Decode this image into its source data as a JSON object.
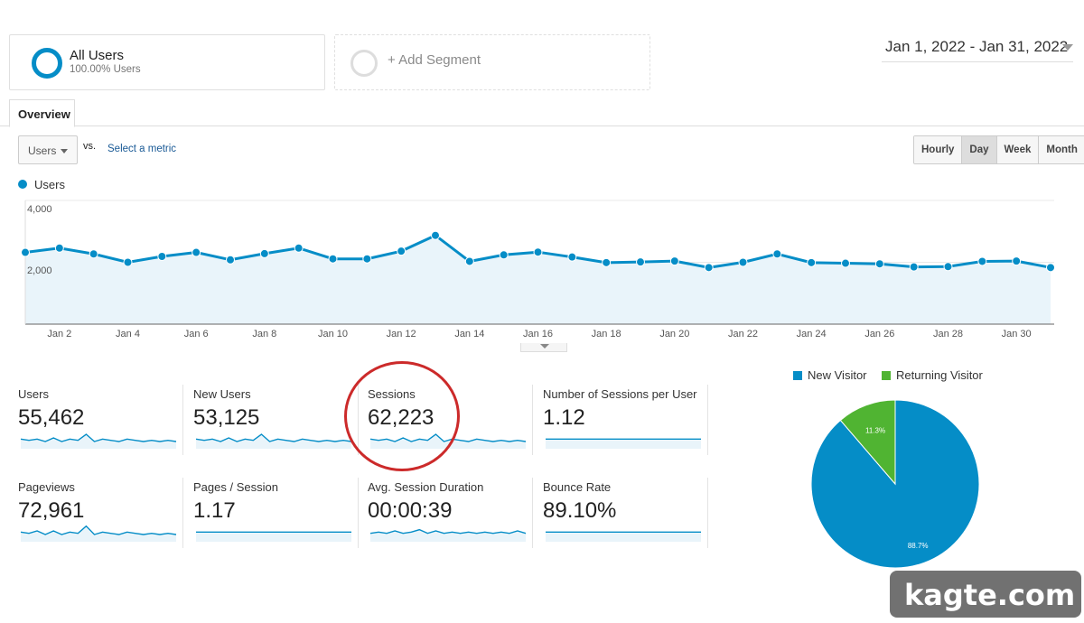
{
  "segments": [
    {
      "title": "All Users",
      "subtitle": "100.00% Users"
    },
    {
      "title": "+ Add Segment"
    }
  ],
  "date_range": "Jan 1, 2022 - Jan 31, 2022",
  "tab": "Overview",
  "metric_select": {
    "selected": "Users",
    "vs": "vs.",
    "select_metric": "Select a metric"
  },
  "granularity": {
    "options": [
      "Hourly",
      "Day",
      "Week",
      "Month"
    ],
    "selected": "Day"
  },
  "legend": "Users",
  "colors": {
    "users": "#058dc7",
    "returning": "#50b432"
  },
  "chart_data": {
    "type": "line",
    "series": [
      {
        "name": "Users",
        "values": [
          2320,
          2460,
          2270,
          2000,
          2190,
          2320,
          2080,
          2280,
          2460,
          2110,
          2110,
          2360,
          2870,
          2030,
          2240,
          2330,
          2170,
          1990,
          2010,
          2040,
          1830,
          2000,
          2270,
          1990,
          1970,
          1950,
          1850,
          1860,
          2030,
          2040,
          1830
        ]
      }
    ],
    "x": [
      "Jan 1",
      "Jan 2",
      "Jan 3",
      "Jan 4",
      "Jan 5",
      "Jan 6",
      "Jan 7",
      "Jan 8",
      "Jan 9",
      "Jan 10",
      "Jan 11",
      "Jan 12",
      "Jan 13",
      "Jan 14",
      "Jan 15",
      "Jan 16",
      "Jan 17",
      "Jan 18",
      "Jan 19",
      "Jan 20",
      "Jan 21",
      "Jan 22",
      "Jan 23",
      "Jan 24",
      "Jan 25",
      "Jan 26",
      "Jan 27",
      "Jan 28",
      "Jan 29",
      "Jan 30",
      "Jan 31"
    ],
    "xticks": [
      "Jan 2",
      "Jan 4",
      "Jan 6",
      "Jan 8",
      "Jan 10",
      "Jan 12",
      "Jan 14",
      "Jan 16",
      "Jan 18",
      "Jan 20",
      "Jan 22",
      "Jan 24",
      "Jan 26",
      "Jan 28",
      "Jan 30"
    ],
    "yticks": [
      "4,000",
      "2,000"
    ],
    "ylim": [
      0,
      4000
    ],
    "grid": true
  },
  "metrics": [
    {
      "label": "Users",
      "value": "55,462",
      "spark": [
        5,
        4,
        5,
        3,
        6,
        3,
        5,
        4,
        9,
        3,
        5,
        4,
        3,
        5,
        4,
        3,
        4,
        3,
        4,
        3
      ]
    },
    {
      "label": "New Users",
      "value": "53,125",
      "spark": [
        5,
        4,
        5,
        3,
        6,
        3,
        5,
        4,
        9,
        3,
        5,
        4,
        3,
        5,
        4,
        3,
        4,
        3,
        4,
        3
      ]
    },
    {
      "label": "Sessions",
      "value": "62,223",
      "spark": [
        5,
        4,
        5,
        3,
        6,
        3,
        5,
        4,
        9,
        3,
        5,
        4,
        3,
        5,
        4,
        3,
        4,
        3,
        4,
        3
      ]
    },
    {
      "label": "Number of Sessions per User",
      "value": "1.12",
      "spark": [
        5,
        5,
        5,
        5,
        5,
        5,
        5,
        5,
        5,
        5,
        5,
        5,
        5,
        5,
        5,
        5,
        5,
        5,
        5,
        5
      ]
    },
    {
      "label": "Pageviews",
      "value": "72,961",
      "spark": [
        5,
        4,
        6,
        3,
        6,
        3,
        5,
        4,
        10,
        3,
        5,
        4,
        3,
        5,
        4,
        3,
        4,
        3,
        4,
        3
      ]
    },
    {
      "label": "Pages / Session",
      "value": "1.17",
      "spark": [
        5,
        5,
        5,
        5,
        5,
        5,
        5,
        5,
        5,
        5,
        5,
        5,
        5,
        5,
        5,
        5,
        5,
        5,
        5,
        5
      ]
    },
    {
      "label": "Avg. Session Duration",
      "value": "00:00:39",
      "spark": [
        4,
        5,
        4,
        6,
        4,
        5,
        7,
        4,
        6,
        4,
        5,
        4,
        5,
        4,
        5,
        4,
        5,
        4,
        6,
        4
      ]
    },
    {
      "label": "Bounce Rate",
      "value": "89.10%",
      "spark": [
        5,
        5,
        5,
        5,
        5,
        5,
        5,
        5,
        5,
        5,
        5,
        5,
        5,
        5,
        5,
        5,
        5,
        5,
        5,
        5
      ]
    }
  ],
  "pie": {
    "legend": [
      "New Visitor",
      "Returning Visitor"
    ],
    "values": [
      88.7,
      11.3
    ],
    "labels": [
      "88.7%",
      "11.3%"
    ]
  },
  "watermark": "kagte.com"
}
